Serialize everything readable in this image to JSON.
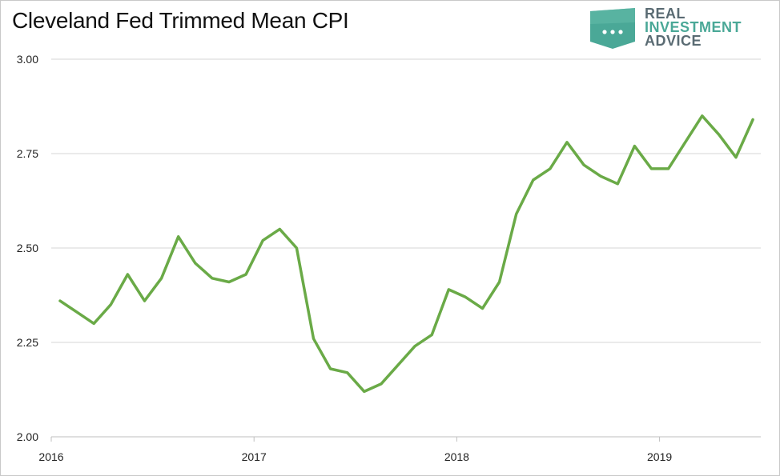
{
  "title": "Cleveland Fed Trimmed Mean CPI",
  "logo": {
    "line1": "REAL",
    "line2": "INVESTMENT",
    "line3": "ADVICE",
    "colors": {
      "line1": "#5a6b73",
      "line2": "#4aa897",
      "line3": "#5a6b73",
      "badge": "#4aa897"
    }
  },
  "chart_data": {
    "type": "line",
    "title": "Cleveland Fed Trimmed Mean CPI",
    "xlabel": "",
    "ylabel": "",
    "ylim": [
      2.0,
      3.0
    ],
    "yticks": [
      "2.00",
      "2.25",
      "2.50",
      "2.75",
      "3.00"
    ],
    "xticks": [
      "2016",
      "2017",
      "2018",
      "2019"
    ],
    "x_start": "2016-01",
    "x_end": "2019-06",
    "grid": true,
    "color": "#6aaa47",
    "series": [
      {
        "values": [
          2.36,
          2.33,
          2.3,
          2.35,
          2.43,
          2.36,
          2.42,
          2.53,
          2.46,
          2.42,
          2.41,
          2.43,
          2.52,
          2.55,
          2.5,
          2.26,
          2.18,
          2.17,
          2.12,
          2.14,
          2.19,
          2.24,
          2.27,
          2.39,
          2.37,
          2.34,
          2.41,
          2.59,
          2.68,
          2.71,
          2.78,
          2.72,
          2.69,
          2.67,
          2.77,
          2.71,
          2.71,
          2.78,
          2.85,
          2.8,
          2.74,
          2.84
        ]
      }
    ]
  }
}
